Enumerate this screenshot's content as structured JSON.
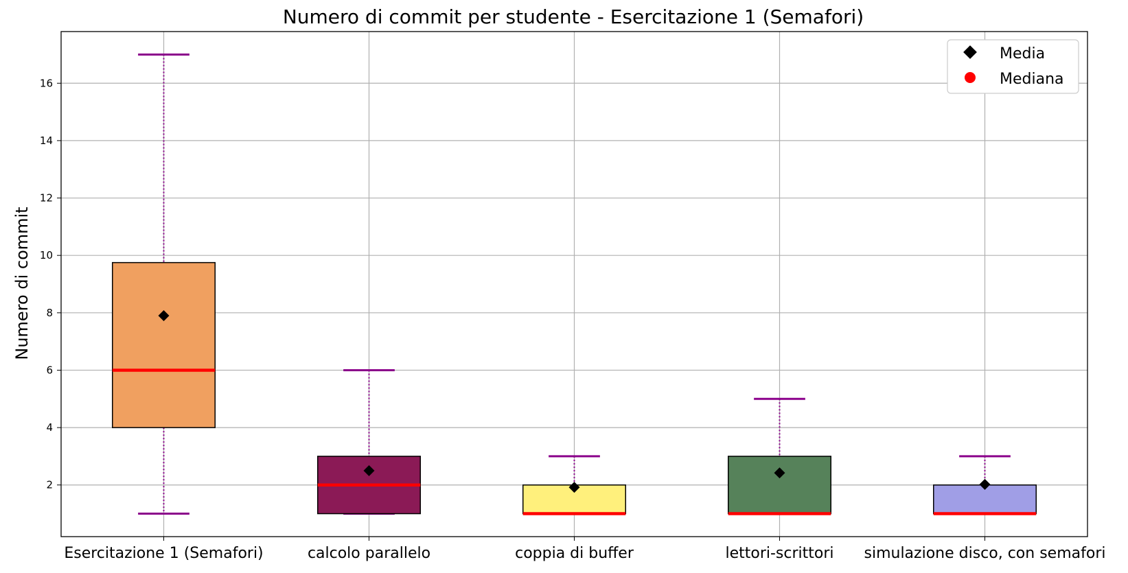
{
  "chart_data": {
    "type": "box",
    "title": "Numero di commit per studente - Esercitazione 1 (Semafori)",
    "xlabel": "",
    "ylabel": "Numero di commit",
    "ylim": [
      0.2,
      17.8
    ],
    "yticks": [
      2,
      4,
      6,
      8,
      10,
      12,
      14,
      16
    ],
    "grid": true,
    "legend": {
      "placement": "top-right",
      "entries": [
        {
          "label": "Media",
          "marker": "diamond",
          "color": "#000000"
        },
        {
          "label": "Mediana",
          "marker": "circle",
          "color": "#ff0000"
        }
      ]
    },
    "categories": [
      "Esercitazione 1 (Semafori)",
      "calcolo parallelo",
      "coppia di buffer",
      "lettori-scrittori",
      "simulazione disco, con semafori"
    ],
    "boxes": [
      {
        "whisker_low": 1,
        "q1": 4,
        "median": 6,
        "q3": 9.75,
        "whisker_high": 17,
        "mean": 7.9,
        "color": "#f0a060"
      },
      {
        "whisker_low": 1,
        "q1": 1,
        "median": 2,
        "q3": 3,
        "whisker_high": 6,
        "mean": 2.5,
        "color": "#8b1a56"
      },
      {
        "whisker_low": 1,
        "q1": 1,
        "median": 1,
        "q3": 2,
        "whisker_high": 3,
        "mean": 1.92,
        "color": "#fff07c"
      },
      {
        "whisker_low": 1,
        "q1": 1,
        "median": 1,
        "q3": 3,
        "whisker_high": 5,
        "mean": 2.42,
        "color": "#56825a"
      },
      {
        "whisker_low": 1,
        "q1": 1,
        "median": 1,
        "q3": 2,
        "whisker_high": 3,
        "mean": 2.02,
        "color": "#a09ee6"
      }
    ],
    "whisker_color": "#8b008b",
    "median_color": "#ff0000",
    "mean_color": "#000000"
  }
}
